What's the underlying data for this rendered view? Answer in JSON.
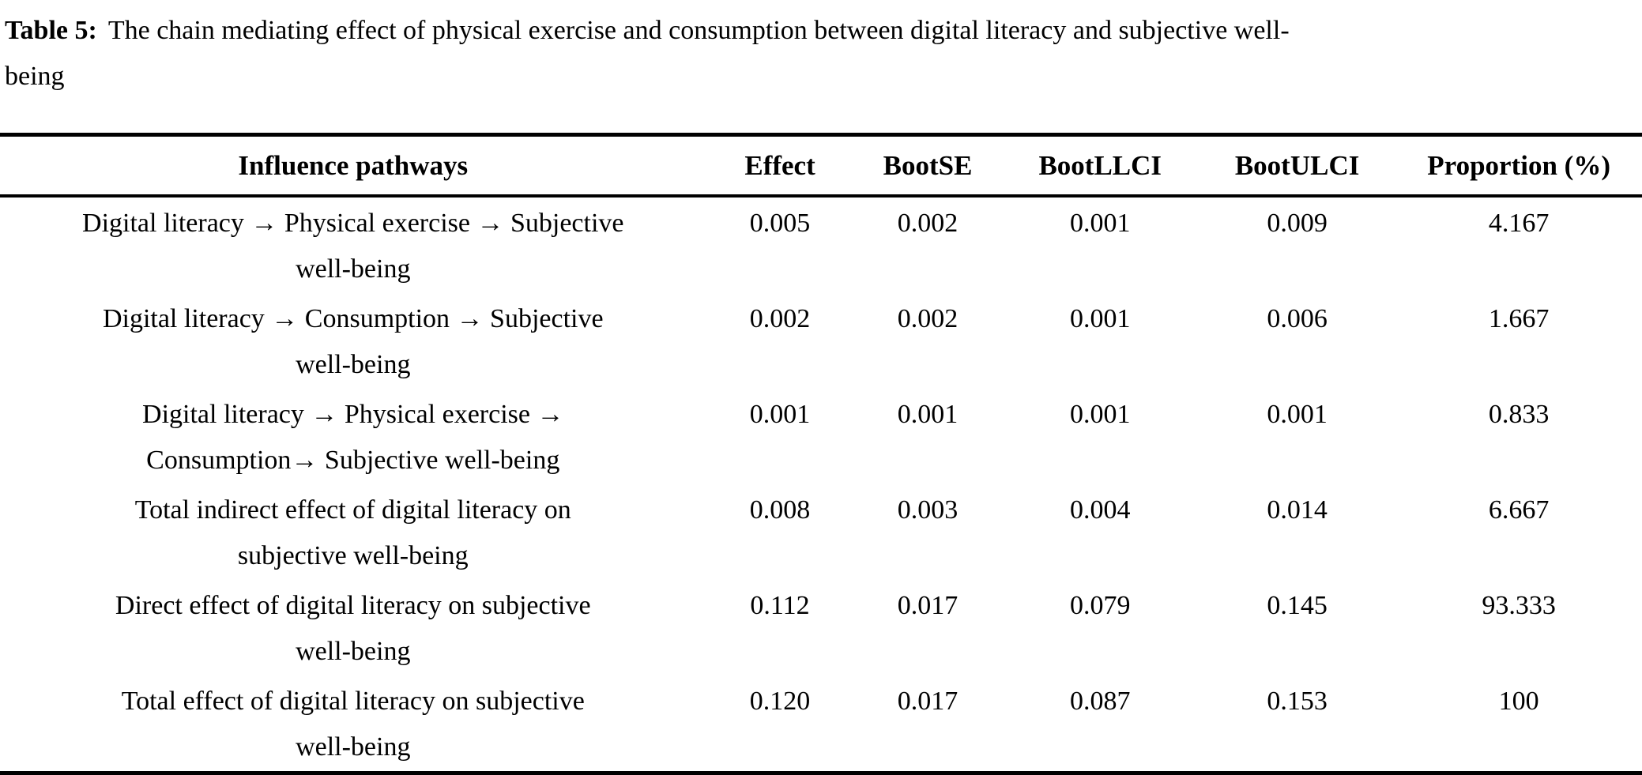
{
  "caption": {
    "label": "Table 5:",
    "line1": "The chain mediating effect of physical exercise and consumption between digital literacy and subjective well-",
    "line2": "being"
  },
  "table": {
    "headers": {
      "pathway": "Influence pathways",
      "effect": "Effect",
      "boot_se": "BootSE",
      "boot_llci": "BootLLCI",
      "boot_ulci": "BootULCI",
      "proportion": "Proportion (%)"
    },
    "rows": [
      {
        "pathway_line1": "Digital literacy → Physical exercise → Subjective",
        "pathway_line2": "well-being",
        "effect": "0.005",
        "boot_se": "0.002",
        "boot_llci": "0.001",
        "boot_ulci": "0.009",
        "proportion": "4.167"
      },
      {
        "pathway_line1": "Digital literacy → Consumption → Subjective",
        "pathway_line2": "well-being",
        "effect": "0.002",
        "boot_se": "0.002",
        "boot_llci": "0.001",
        "boot_ulci": "0.006",
        "proportion": "1.667"
      },
      {
        "pathway_line1": "Digital literacy → Physical exercise →",
        "pathway_line2": "Consumption→ Subjective well-being",
        "effect": "0.001",
        "boot_se": "0.001",
        "boot_llci": "0.001",
        "boot_ulci": "0.001",
        "proportion": "0.833"
      },
      {
        "pathway_line1": "Total indirect effect of digital literacy on",
        "pathway_line2": "subjective well-being",
        "effect": "0.008",
        "boot_se": "0.003",
        "boot_llci": "0.004",
        "boot_ulci": "0.014",
        "proportion": "6.667"
      },
      {
        "pathway_line1": "Direct effect of digital literacy on subjective",
        "pathway_line2": "well-being",
        "effect": "0.112",
        "boot_se": "0.017",
        "boot_llci": "0.079",
        "boot_ulci": "0.145",
        "proportion": "93.333"
      },
      {
        "pathway_line1": "Total effect of digital literacy on subjective",
        "pathway_line2": "well-being",
        "effect": "0.120",
        "boot_se": "0.017",
        "boot_llci": "0.087",
        "boot_ulci": "0.153",
        "proportion": "100"
      }
    ]
  }
}
